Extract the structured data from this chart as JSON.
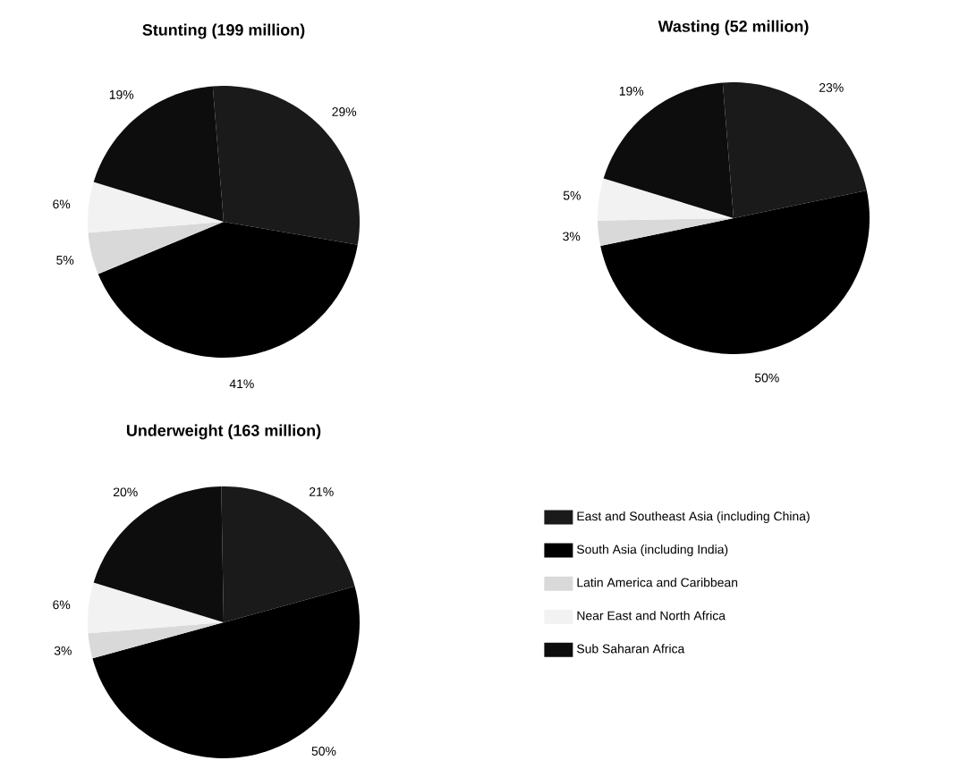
{
  "chart_data": [
    {
      "type": "pie",
      "title": "Stunting (199 million)",
      "values": [
        29,
        41,
        5,
        6,
        19
      ],
      "colors": [
        "#1a1a1a",
        "#000000",
        "#d9d9d9",
        "#f2f2f2",
        "#0d0d0d"
      ],
      "value_labels": [
        "29%",
        "41%",
        "5%",
        "6%",
        "19%"
      ],
      "legend": false
    },
    {
      "type": "pie",
      "title": "Wasting (52 million)",
      "values": [
        23,
        50,
        3,
        5,
        19
      ],
      "colors": [
        "#1a1a1a",
        "#000000",
        "#d9d9d9",
        "#f2f2f2",
        "#0d0d0d"
      ],
      "value_labels": [
        "23%",
        "50%",
        "3%",
        "5%",
        "19%"
      ],
      "legend": false
    },
    {
      "type": "pie",
      "title": "Underweight (163 million)",
      "categories": [
        "East and Southeast Asia (including China)",
        "South Asia (including India)",
        "Latin America and Caribbean",
        "Near East and North Africa",
        "Sub Saharan Africa"
      ],
      "values": [
        21,
        50,
        3,
        6,
        20
      ],
      "colors": [
        "#1a1a1a",
        "#000000",
        "#d9d9d9",
        "#f2f2f2",
        "#0d0d0d"
      ],
      "value_labels": [
        "21%",
        "50%",
        "3%",
        "6%",
        "20%"
      ],
      "legend": "right"
    }
  ]
}
